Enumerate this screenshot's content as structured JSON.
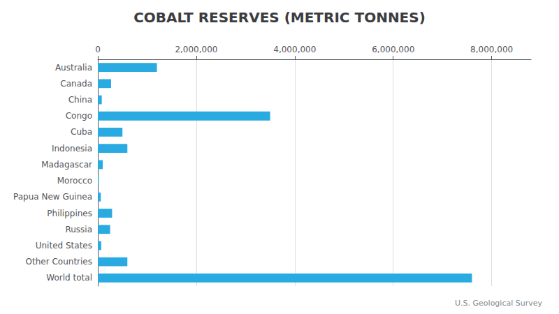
{
  "chart_data": {
    "type": "bar",
    "orientation": "horizontal",
    "title": "COBALT RESERVES (METRIC TONNES)",
    "annotation": "U.S. Geological Survey",
    "categories": [
      "World total",
      "Other Countries",
      "United States",
      "Russia",
      "Philippines",
      "Papua New Guinea",
      "Morocco",
      "Madagascar",
      "Indonesia",
      "Cuba",
      "Congo",
      "China",
      "Canada",
      "Australia"
    ],
    "values": [
      7600000,
      600000,
      69000,
      250000,
      290000,
      60000,
      20000,
      100000,
      600000,
      500000,
      3500000,
      80000,
      270000,
      1200000
    ],
    "color": "#29ABE2",
    "xlim": [
      0,
      8800000
    ],
    "xticks": [
      0,
      {
        "value": 2000000,
        "label": "2,000,000"
      },
      {
        "value": 4000000,
        "label": "4,000,000"
      },
      {
        "value": 6000000,
        "label": "6,000,000"
      },
      {
        "value": 8000000,
        "label": "8,000,000"
      }
    ],
    "grid": true
  }
}
